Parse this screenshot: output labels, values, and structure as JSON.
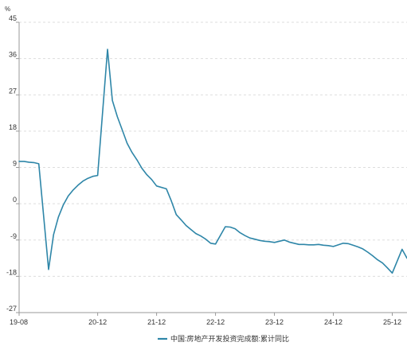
{
  "chart_data": {
    "type": "line",
    "title": "",
    "y_unit": "%",
    "xlabel": "",
    "ylabel": "",
    "ylim": [
      -27,
      45
    ],
    "y_ticks": [
      45,
      36,
      27,
      18,
      9,
      0,
      -9,
      -18,
      -27
    ],
    "x_tick_labels": [
      "19-08",
      "20-12",
      "21-12",
      "22-12",
      "23-12",
      "24-12",
      "25-12"
    ],
    "grid": "horizontal dashed",
    "legend_position": "bottom-center",
    "colors": {
      "line": "#2e86a8"
    },
    "series": [
      {
        "name": "中国:房地产开发投资完成额:累计同比",
        "x": [
          "2019-08",
          "2019-09",
          "2019-10",
          "2019-11",
          "2019-12",
          "2020-02",
          "2020-03",
          "2020-04",
          "2020-05",
          "2020-06",
          "2020-07",
          "2020-08",
          "2020-09",
          "2020-10",
          "2020-11",
          "2020-12",
          "2021-02",
          "2021-03",
          "2021-04",
          "2021-05",
          "2021-06",
          "2021-07",
          "2021-08",
          "2021-09",
          "2021-10",
          "2021-11",
          "2021-12",
          "2022-02",
          "2022-03",
          "2022-04",
          "2022-05",
          "2022-06",
          "2022-07",
          "2022-08",
          "2022-09",
          "2022-10",
          "2022-11",
          "2022-12",
          "2023-02",
          "2023-03",
          "2023-04",
          "2023-05",
          "2023-06",
          "2023-07",
          "2023-08",
          "2023-09",
          "2023-10",
          "2023-11",
          "2023-12",
          "2024-02",
          "2024-03",
          "2024-04",
          "2024-05",
          "2024-06",
          "2024-07",
          "2024-08",
          "2024-09",
          "2024-10",
          "2024-11",
          "2024-12",
          "2025-02",
          "2025-03",
          "2025-04",
          "2025-05",
          "2025-06",
          "2025-07",
          "2025-08",
          "2025-09",
          "2025-10",
          "2025-11",
          "2025-12",
          "2026-02",
          "2026-03"
        ],
        "values": [
          10.5,
          10.5,
          10.3,
          10.2,
          9.9,
          -16.3,
          -7.7,
          -3.3,
          -0.3,
          1.9,
          3.4,
          4.6,
          5.6,
          6.3,
          6.8,
          7.0,
          38.3,
          25.6,
          21.6,
          18.3,
          15.0,
          12.7,
          10.9,
          8.8,
          7.2,
          6.0,
          4.4,
          3.7,
          0.7,
          -2.7,
          -4.0,
          -5.4,
          -6.4,
          -7.4,
          -8.0,
          -8.8,
          -9.8,
          -10.0,
          -5.7,
          -5.8,
          -6.2,
          -7.2,
          -7.9,
          -8.5,
          -8.8,
          -9.1,
          -9.3,
          -9.4,
          -9.6,
          -9.0,
          -9.5,
          -9.8,
          -10.1,
          -10.1,
          -10.2,
          -10.2,
          -10.1,
          -10.3,
          -10.4,
          -10.6,
          -9.8,
          -9.9,
          -10.3,
          -10.7,
          -11.2,
          -12.0,
          -12.9,
          -13.9,
          -14.7,
          -15.9,
          -17.2,
          -11.3,
          -13.5
        ]
      }
    ]
  }
}
